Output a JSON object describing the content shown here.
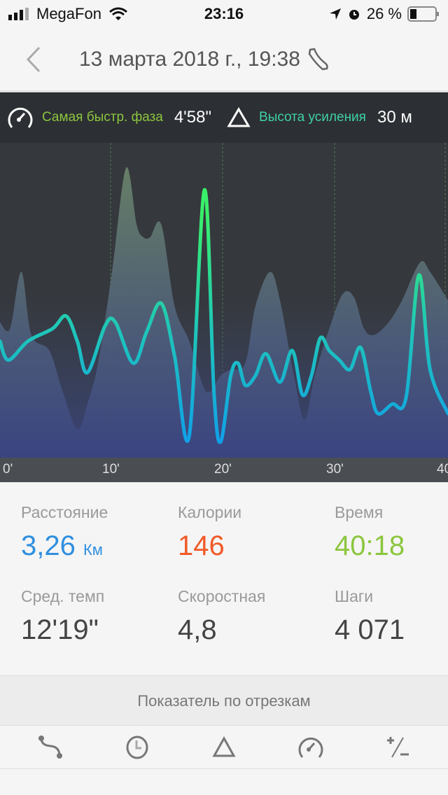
{
  "status_bar": {
    "carrier": "MegaFon",
    "time": "23:16",
    "battery": "26 %",
    "battery_level": 0.26
  },
  "header": {
    "title": "13 марта 2018 г., 19:38",
    "activity_icon": "running-shoe-icon"
  },
  "chart_legend": {
    "fastest_label": "Самая быстр. фаза",
    "fastest_value": "4'58\"",
    "elevation_label": "Высота усиления",
    "elevation_value": "30 м"
  },
  "colors": {
    "green": "#8cc63f",
    "teal": "#3fd1a8",
    "blue": "#2f8fdf",
    "orange": "#f05a28",
    "line_top": "#39f06a",
    "line_bottom": "#10a6e0"
  },
  "chart_data": {
    "type": "line",
    "x_ticks": [
      "0'",
      "10'",
      "20'",
      "30'",
      "40'"
    ],
    "xlim": [
      0,
      40
    ],
    "ylim": [
      0,
      100
    ],
    "grid": "vertical dashed",
    "series": [
      {
        "kind": "area",
        "x": [
          0,
          0.9,
          1.9,
          2.8,
          4.4,
          5.6,
          6.9,
          7.8,
          8.75,
          10,
          11.25,
          12.2,
          12.8,
          13.4,
          14.4,
          15.6,
          16.9,
          18.1,
          18.75,
          19.7,
          20.6,
          21.9,
          22.8,
          24.1,
          25,
          26.25,
          27.2,
          28.1,
          29.4,
          30.6,
          31.6,
          32.5,
          33.4,
          34.7,
          35.9,
          37.5,
          38.4,
          40
        ],
        "values": [
          43,
          41,
          59,
          39,
          34,
          21,
          9,
          17,
          30,
          59,
          92,
          74,
          70,
          70,
          74,
          48,
          37,
          23,
          21,
          26,
          28,
          30,
          48,
          59,
          50,
          26,
          12,
          26,
          41,
          52,
          51,
          41,
          39,
          43,
          50,
          62,
          59,
          50
        ]
      },
      {
        "kind": "line",
        "x": [
          0,
          0.75,
          2.5,
          4.7,
          5.9,
          6.9,
          7.8,
          9.4,
          10.3,
          11.9,
          13.1,
          14.4,
          15.6,
          16.9,
          18.25,
          19.1,
          19.7,
          20.6,
          21.25,
          21.9,
          22.8,
          23.75,
          25,
          26.1,
          27,
          27.8,
          28.6,
          29.4,
          30.3,
          31.25,
          32.2,
          33.1,
          33.75,
          35,
          36.25,
          37.4,
          38.4,
          40
        ],
        "values": [
          37,
          31,
          37,
          41,
          45,
          37,
          27,
          42,
          43,
          30,
          40,
          49,
          32,
          7,
          85,
          21,
          5,
          26,
          30,
          23,
          26,
          33,
          24,
          34,
          20,
          26,
          38,
          34,
          31,
          28,
          35,
          21,
          14,
          17,
          19,
          58,
          28,
          14
        ]
      }
    ]
  },
  "stats": [
    {
      "label": "Расстояние",
      "value": "3,26",
      "unit": "Км",
      "color": "#2f8fdf"
    },
    {
      "label": "Калории",
      "value": "146",
      "unit": "",
      "color": "#f05a28"
    },
    {
      "label": "Время",
      "value": "40:18",
      "unit": "",
      "color": "#8cc63f"
    },
    {
      "label": "Сред. темп",
      "value": "12'19\"",
      "unit": "",
      "color": "#444444"
    },
    {
      "label": "Скоростная",
      "value": "4,8",
      "unit": "",
      "color": "#444444"
    },
    {
      "label": "Шаги",
      "value": "4 071",
      "unit": "",
      "color": "#444444"
    }
  ],
  "segments": {
    "title": "Показатель по отрезкам",
    "tabs": [
      "route-icon",
      "clock-icon",
      "elevation-icon",
      "speedometer-icon",
      "plus-minus-icon"
    ]
  }
}
